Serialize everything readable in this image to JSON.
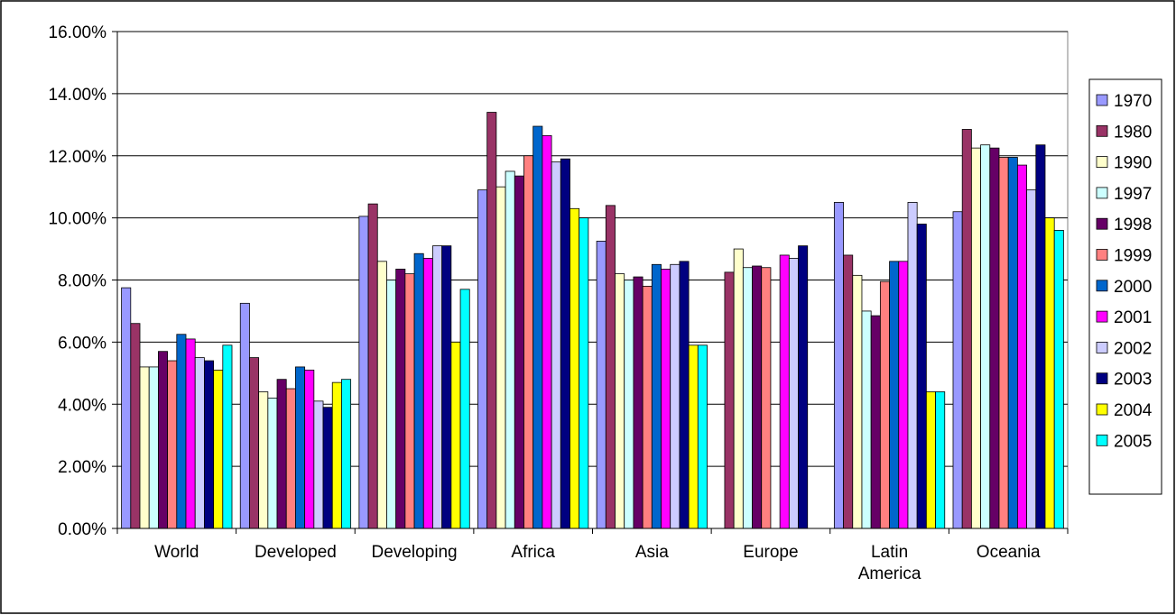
{
  "chart_data": {
    "type": "bar",
    "title": "",
    "xlabel": "",
    "ylabel": "",
    "ylim": [
      0,
      16
    ],
    "y_tick_step": 2,
    "y_tick_format": "percent-2dp",
    "grid": "horizontal major",
    "legend_position": "right",
    "categories": [
      "World",
      "Developed",
      "Developing",
      "Africa",
      "Asia",
      "Europe",
      "Latin America",
      "Oceania"
    ],
    "category_labels": [
      [
        "World"
      ],
      [
        "Developed"
      ],
      [
        "Developing"
      ],
      [
        "Africa"
      ],
      [
        "Asia"
      ],
      [
        "Europe"
      ],
      [
        "Latin",
        "America"
      ],
      [
        "Oceania"
      ]
    ],
    "series": [
      {
        "name": "1970",
        "color": "#9999FF",
        "values": [
          7.75,
          7.25,
          10.05,
          10.9,
          9.25,
          null,
          10.5,
          10.2
        ]
      },
      {
        "name": "1980",
        "color": "#993366",
        "values": [
          6.6,
          5.5,
          10.45,
          13.4,
          10.4,
          8.25,
          8.8,
          12.85
        ]
      },
      {
        "name": "1990",
        "color": "#FFFFCC",
        "values": [
          5.2,
          4.4,
          8.6,
          11.0,
          8.2,
          9.0,
          8.15,
          12.25
        ]
      },
      {
        "name": "1997",
        "color": "#CCFFFF",
        "values": [
          5.2,
          4.2,
          8.0,
          11.5,
          8.0,
          8.4,
          7.0,
          12.35
        ]
      },
      {
        "name": "1998",
        "color": "#660066",
        "values": [
          5.7,
          4.8,
          8.35,
          11.35,
          8.1,
          8.45,
          6.85,
          12.25
        ]
      },
      {
        "name": "1999",
        "color": "#FF8080",
        "values": [
          5.4,
          4.5,
          8.2,
          12.0,
          7.8,
          8.4,
          7.95,
          11.95
        ]
      },
      {
        "name": "2000",
        "color": "#0066CC",
        "values": [
          6.25,
          5.2,
          8.85,
          12.95,
          8.5,
          null,
          8.6,
          11.95
        ]
      },
      {
        "name": "2001",
        "color": "#FF00FF",
        "values": [
          6.1,
          5.1,
          8.7,
          12.65,
          8.35,
          8.8,
          8.6,
          11.7
        ]
      },
      {
        "name": "2002",
        "color": "#CCCCFF",
        "values": [
          5.5,
          4.1,
          9.1,
          11.8,
          8.5,
          8.7,
          10.5,
          10.9
        ]
      },
      {
        "name": "2003",
        "color": "#000080",
        "values": [
          5.4,
          3.9,
          9.1,
          11.9,
          8.6,
          9.1,
          9.8,
          12.35
        ]
      },
      {
        "name": "2004",
        "color": "#FFFF00",
        "values": [
          5.1,
          4.7,
          6.0,
          10.3,
          5.9,
          null,
          4.4,
          10.0
        ]
      },
      {
        "name": "2005",
        "color": "#00FFFF",
        "values": [
          5.9,
          4.8,
          7.7,
          10.0,
          5.9,
          null,
          4.4,
          9.6
        ]
      }
    ]
  }
}
